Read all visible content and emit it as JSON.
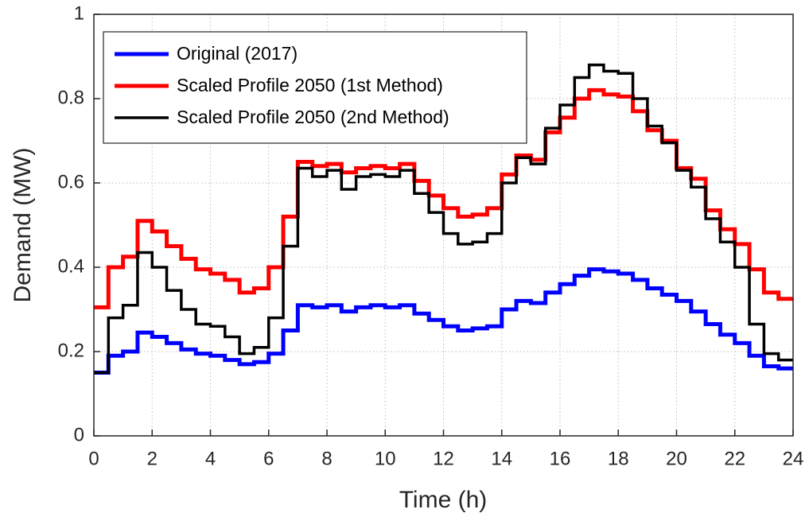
{
  "chart_data": {
    "type": "step",
    "xlabel": "Time (h)",
    "ylabel": "Demand (MW)",
    "x": [
      0,
      0.5,
      1,
      1.5,
      2,
      2.5,
      3,
      3.5,
      4,
      4.5,
      5,
      5.5,
      6,
      6.5,
      7,
      7.5,
      8,
      8.5,
      9,
      9.5,
      10,
      10.5,
      11,
      11.5,
      12,
      12.5,
      13,
      13.5,
      14,
      14.5,
      15,
      15.5,
      16,
      16.5,
      17,
      17.5,
      18,
      18.5,
      19,
      19.5,
      20,
      20.5,
      21,
      21.5,
      22,
      22.5,
      23,
      23.5
    ],
    "series": [
      {
        "name": "Original (2017)",
        "color": "#0000ff",
        "width": 5,
        "values": [
          0.15,
          0.19,
          0.2,
          0.245,
          0.235,
          0.22,
          0.205,
          0.195,
          0.19,
          0.18,
          0.17,
          0.175,
          0.195,
          0.25,
          0.31,
          0.305,
          0.31,
          0.295,
          0.305,
          0.31,
          0.305,
          0.31,
          0.29,
          0.275,
          0.26,
          0.25,
          0.255,
          0.26,
          0.3,
          0.32,
          0.315,
          0.34,
          0.36,
          0.38,
          0.395,
          0.39,
          0.385,
          0.37,
          0.35,
          0.335,
          0.32,
          0.295,
          0.265,
          0.24,
          0.22,
          0.19,
          0.165,
          0.16
        ]
      },
      {
        "name": "Scaled Profile 2050 (1st Method)",
        "color": "#ff0000",
        "width": 5,
        "values": [
          0.305,
          0.4,
          0.425,
          0.51,
          0.485,
          0.45,
          0.42,
          0.395,
          0.385,
          0.37,
          0.34,
          0.35,
          0.4,
          0.52,
          0.65,
          0.64,
          0.645,
          0.625,
          0.635,
          0.64,
          0.635,
          0.645,
          0.605,
          0.57,
          0.54,
          0.52,
          0.525,
          0.54,
          0.62,
          0.665,
          0.655,
          0.72,
          0.755,
          0.8,
          0.82,
          0.81,
          0.805,
          0.77,
          0.725,
          0.7,
          0.635,
          0.61,
          0.535,
          0.49,
          0.455,
          0.395,
          0.34,
          0.325
        ]
      },
      {
        "name": "Scaled Profile 2050 (2nd Method)",
        "color": "#000000",
        "width": 3.5,
        "values": [
          0.15,
          0.28,
          0.31,
          0.435,
          0.4,
          0.345,
          0.3,
          0.265,
          0.26,
          0.235,
          0.195,
          0.21,
          0.28,
          0.45,
          0.635,
          0.615,
          0.63,
          0.585,
          0.615,
          0.62,
          0.615,
          0.63,
          0.575,
          0.53,
          0.48,
          0.455,
          0.46,
          0.48,
          0.6,
          0.66,
          0.645,
          0.73,
          0.785,
          0.85,
          0.88,
          0.865,
          0.86,
          0.8,
          0.735,
          0.695,
          0.63,
          0.59,
          0.515,
          0.46,
          0.4,
          0.265,
          0.195,
          0.18
        ]
      }
    ],
    "xlim": [
      0,
      24
    ],
    "xticks": [
      0,
      2,
      4,
      6,
      8,
      10,
      12,
      14,
      16,
      18,
      20,
      22,
      24
    ],
    "ylim": [
      0,
      1
    ],
    "yticks": [
      0,
      0.2,
      0.4,
      0.6,
      0.8,
      1
    ],
    "grid": true,
    "legend": "upper left"
  }
}
